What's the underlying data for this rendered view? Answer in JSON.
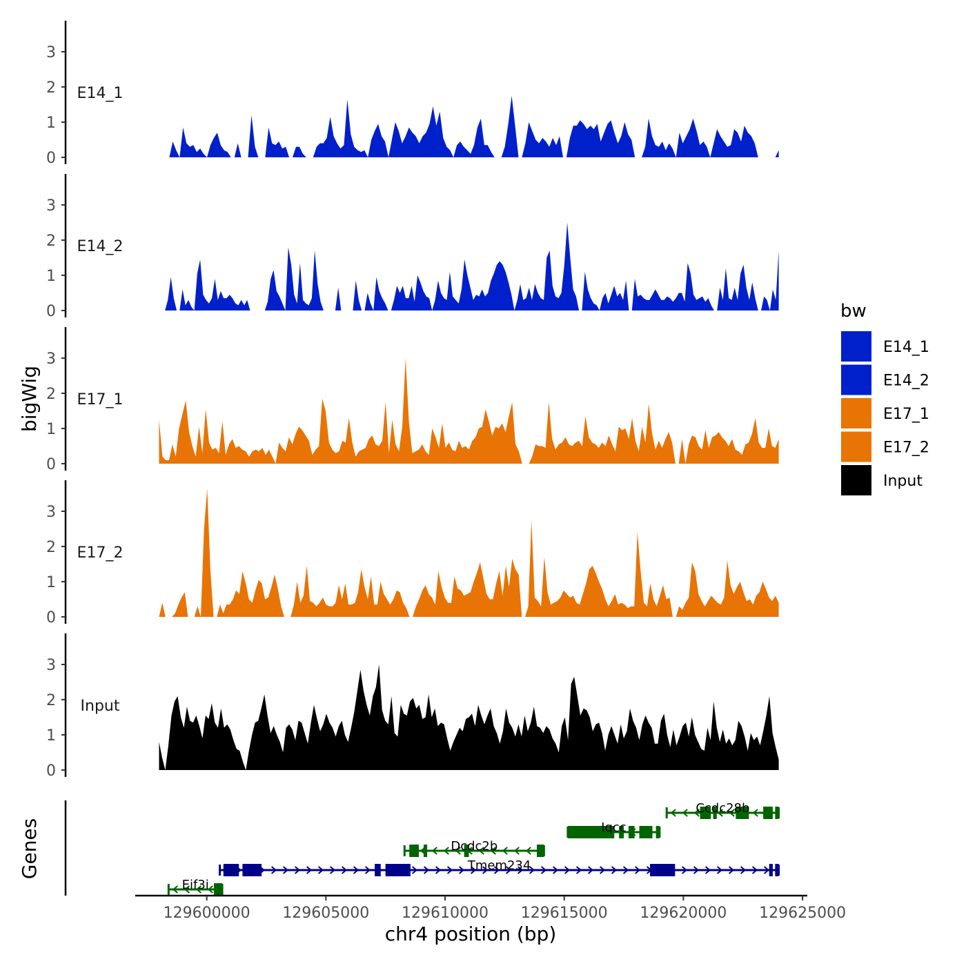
{
  "chart_data": {
    "type": "area",
    "title": "",
    "ylabel": "bigWig",
    "xlabel": "chr4 position (bp)",
    "genes_label": "Genes",
    "xlim": [
      129597000,
      129625200
    ],
    "ylim": [
      0,
      3.8
    ],
    "x_ticks": [
      129600000,
      129605000,
      129610000,
      129615000,
      129620000,
      129625000
    ],
    "x_tick_labels": [
      "129600000",
      "129605000",
      "129610000",
      "129615000",
      "129620000",
      "129625000"
    ],
    "y_ticks": [
      0,
      1,
      2,
      3
    ],
    "y_tick_labels": [
      "0",
      "1",
      "2",
      "3"
    ],
    "legend": {
      "title": "bw",
      "position": "right",
      "entries": [
        {
          "label": "E14_1",
          "color": "#0020CC"
        },
        {
          "label": "E14_2",
          "color": "#0020CC"
        },
        {
          "label": "E17_1",
          "color": "#E87405"
        },
        {
          "label": "E17_2",
          "color": "#E87405"
        },
        {
          "label": "Input",
          "color": "#000000"
        }
      ]
    },
    "tracks": [
      {
        "name": "E14_1",
        "color": "#0020CC",
        "start": 129598000,
        "end": 129624000,
        "values": [
          0,
          0,
          0,
          0,
          0.45,
          0.2,
          0,
          0.85,
          0.4,
          0.3,
          0.35,
          0.15,
          0.25,
          0.1,
          0,
          0.35,
          0.55,
          0.7,
          0.35,
          0.2,
          0.15,
          0,
          0,
          0.4,
          0,
          0,
          0,
          1.2,
          0.3,
          0,
          0,
          0,
          0.85,
          0.4,
          0.35,
          0.45,
          0.25,
          0.3,
          0,
          0,
          0.3,
          0.3,
          0.1,
          0,
          0,
          0,
          0.3,
          0.4,
          0.4,
          0.55,
          1.15,
          0.6,
          0.4,
          0.25,
          0.35,
          1.65,
          0.65,
          0.3,
          0.2,
          0.15,
          0.2,
          0,
          0.5,
          0.75,
          0.95,
          0.6,
          0.45,
          0,
          0.5,
          1.0,
          0.75,
          0.4,
          0.6,
          0.85,
          0.7,
          0.6,
          0.4,
          0.6,
          0.7,
          0.95,
          1.45,
          0.9,
          1.3,
          0.55,
          0.3,
          0.2,
          0,
          0.35,
          0.45,
          0.3,
          0.2,
          0.1,
          0.35,
          0.85,
          1.1,
          0.35,
          0.35,
          0.15,
          0,
          0,
          0,
          0.3,
          0.95,
          1.75,
          0.9,
          0,
          0,
          0.4,
          1.0,
          0.75,
          0.5,
          0.4,
          0.55,
          0.45,
          0.3,
          0.55,
          0.35,
          0.6,
          0,
          0,
          0.55,
          0.9,
          0.9,
          1.05,
          0.95,
          0.8,
          0.9,
          0.8,
          0.95,
          0.45,
          0.7,
          0.95,
          1.05,
          0.7,
          0.4,
          0.6,
          1.0,
          0.65,
          0.5,
          0,
          0,
          0,
          0.3,
          1.1,
          0.6,
          0.35,
          0.3,
          0.45,
          0.2,
          0.4,
          0.25,
          0,
          0.7,
          0.4,
          0.6,
          0.8,
          1.1,
          0.75,
          0.35,
          0.45,
          0.3,
          0,
          0.4,
          0.8,
          0.6,
          0.45,
          0.3,
          0.35,
          0.8,
          0.7,
          0.45,
          0.9,
          0.7,
          0.6,
          0.4,
          0,
          0,
          0,
          0,
          0,
          0,
          0.2
        ]
      },
      {
        "name": "E14_2",
        "color": "#0020CC",
        "start": 129598000,
        "end": 129624000,
        "values": [
          0,
          0,
          0,
          0.3,
          0.95,
          0.35,
          0,
          0,
          0.6,
          0.15,
          0.3,
          0.1,
          0,
          1.05,
          1.45,
          0.45,
          0.3,
          0.2,
          0.35,
          0.9,
          0.3,
          0.55,
          0.35,
          0.35,
          0.45,
          0.35,
          0.2,
          0.15,
          0.3,
          0.15,
          0.3,
          0,
          0,
          0,
          0,
          0,
          0,
          0.25,
          0.9,
          1.15,
          0.55,
          0.4,
          0.2,
          0,
          1.8,
          1.3,
          0.45,
          0.2,
          1.35,
          0.3,
          0.2,
          0.15,
          0.35,
          1.7,
          0.75,
          0.25,
          0,
          0,
          0,
          0,
          0,
          0.65,
          0,
          0,
          0,
          0,
          0,
          0.85,
          0.3,
          0,
          0,
          0.5,
          0.2,
          0,
          0.95,
          0.55,
          0.35,
          0.2,
          0,
          0,
          0.3,
          0.7,
          0.5,
          0.7,
          0.35,
          0.35,
          0.7,
          0.25,
          1.0,
          0.8,
          0.55,
          0.4,
          0.35,
          0,
          0.3,
          0.85,
          0.5,
          0.35,
          0.3,
          1.1,
          0.4,
          0.3,
          0.2,
          0.6,
          1.45,
          1.0,
          0.65,
          0.3,
          0.45,
          0.4,
          0.6,
          0.4,
          0.5,
          0.85,
          1.05,
          1.3,
          1.4,
          1.3,
          1.1,
          0.8,
          0.45,
          0,
          0.3,
          0.75,
          0.3,
          0.35,
          0.65,
          0.3,
          0.75,
          0.5,
          0.35,
          0.3,
          1.5,
          1.7,
          0.7,
          0.4,
          0.35,
          0.5,
          1.3,
          2.5,
          1.5,
          0.6,
          0.4,
          0,
          0,
          1.1,
          0.6,
          0.35,
          0.2,
          0.15,
          0,
          0.35,
          0.5,
          0.2,
          0.45,
          0.7,
          0.4,
          0.5,
          0.3,
          0.85,
          0,
          0,
          0.9,
          0.4,
          0.45,
          0.35,
          0.3,
          0.3,
          0.45,
          0.6,
          0.45,
          0.3,
          0.3,
          0.4,
          0.35,
          0.25,
          0.35,
          0.5,
          0.5,
          0.25,
          1.35,
          1.05,
          0.45,
          0.3,
          0.35,
          0.4,
          0.25,
          0.35,
          0.15,
          0,
          0,
          0.65,
          0.3,
          1.2,
          0.35,
          0.3,
          0.65,
          0.3,
          1.05,
          1.3,
          0.65,
          0.3,
          0.8,
          0.35,
          0,
          0,
          0.4,
          0.3,
          0,
          0.6,
          0.3,
          1.7
        ]
      },
      {
        "name": "E17_1",
        "color": "#E87405",
        "start": 129598000,
        "end": 129624000,
        "values": [
          1.25,
          0.2,
          0.1,
          0.1,
          0.55,
          0.2,
          1.0,
          1.4,
          1.8,
          0.9,
          0.5,
          0.2,
          1.05,
          0.3,
          1.55,
          0.6,
          0.4,
          0.45,
          0.3,
          1.2,
          0.25,
          0.55,
          0.7,
          0.45,
          0.5,
          0.4,
          0.35,
          0.2,
          0.35,
          0.4,
          0.35,
          0.45,
          0.25,
          0.4,
          0.2,
          0,
          0.6,
          0.45,
          0.35,
          0.75,
          0.55,
          0.85,
          1.05,
          0.95,
          0.8,
          0.65,
          0.25,
          0.4,
          0.5,
          1.85,
          1.5,
          0.6,
          0.4,
          0.3,
          0.35,
          0.65,
          0.6,
          1.3,
          0.6,
          0.2,
          0.35,
          0.4,
          0.45,
          0.7,
          0.8,
          0.55,
          0.5,
          0.65,
          1.75,
          0.3,
          1.25,
          0.55,
          0.35,
          1.05,
          3.0,
          1.2,
          0.3,
          0.35,
          0.4,
          0.55,
          0.35,
          0.25,
          1.0,
          0.75,
          0.45,
          1.15,
          0.45,
          0.6,
          0.4,
          0.35,
          0.65,
          0.45,
          0.5,
          0.4,
          0.65,
          0.75,
          1.0,
          1.05,
          1.55,
          1.2,
          0.8,
          1.05,
          1.0,
          1.15,
          0.9,
          1.35,
          1.75,
          0.55,
          0.35,
          0,
          0,
          0,
          0.2,
          0.55,
          0.5,
          0.5,
          0.45,
          1.75,
          0.7,
          0.4,
          0.55,
          0.6,
          0.75,
          0.55,
          0.5,
          0.6,
          0.65,
          0.5,
          1.35,
          0.75,
          0.6,
          0.55,
          0.45,
          0.6,
          0.5,
          0.8,
          0.55,
          0.35,
          1.05,
          0.95,
          1.0,
          0.7,
          1.3,
          0.65,
          0.35,
          1.05,
          0.6,
          1.7,
          0.85,
          0.4,
          0.65,
          0.45,
          0.7,
          0.9,
          0.6,
          0,
          0,
          0.7,
          0,
          0.55,
          0.8,
          0.75,
          0.5,
          0.4,
          0.95,
          0.45,
          0.75,
          0.8,
          0.9,
          0.75,
          0.65,
          0.5,
          0.7,
          0.4,
          0.35,
          0.25,
          0.55,
          0.6,
          0.85,
          1.3,
          0.6,
          0.45,
          0.45,
          1.0,
          0.5,
          0.45,
          0.7
        ]
      },
      {
        "name": "E17_2",
        "color": "#E87405",
        "start": 129598000,
        "end": 129624000,
        "values": [
          0,
          0.4,
          0,
          0,
          0,
          0.1,
          0.35,
          0.55,
          0.7,
          0,
          0,
          0,
          0.3,
          0,
          2.5,
          3.65,
          1.3,
          0,
          0,
          0.35,
          0.1,
          0.35,
          0.35,
          0.5,
          0.75,
          0.65,
          1.3,
          0.95,
          0.5,
          0.4,
          0.75,
          1.05,
          0.95,
          0.5,
          0.55,
          0.85,
          1.2,
          0.8,
          0.3,
          0,
          0,
          0,
          0.35,
          1.0,
          0.4,
          0.6,
          1.45,
          0.45,
          0.4,
          0.3,
          0.4,
          0.55,
          0.35,
          0.3,
          0.3,
          0.4,
          0.9,
          0.5,
          0.95,
          0.35,
          0.35,
          0.4,
          0.7,
          1.35,
          0.85,
          0.5,
          1.15,
          0.35,
          0.35,
          1.0,
          0.65,
          0.5,
          0.35,
          0.5,
          0.75,
          0.7,
          0.4,
          0.25,
          0,
          0,
          0.3,
          0.5,
          0.75,
          0.9,
          0.65,
          0.55,
          0.35,
          1.3,
          0.85,
          0.55,
          0.4,
          0.4,
          1.15,
          0.8,
          0.75,
          0.6,
          0.65,
          0.7,
          1.0,
          1.25,
          1.55,
          1.1,
          0.65,
          0.5,
          0.5,
          0.95,
          1.3,
          0.6,
          1.45,
          0.85,
          1.65,
          1.35,
          1.2,
          0,
          0,
          0.3,
          2.75,
          0.55,
          0.45,
          0.3,
          1.7,
          0.7,
          0.35,
          0.4,
          0.45,
          0.55,
          0.75,
          0.65,
          0.55,
          0.6,
          0.4,
          0.35,
          0.65,
          0.95,
          1.35,
          1.45,
          1.25,
          1.0,
          0.8,
          0.5,
          0.3,
          0.45,
          0.65,
          0.35,
          0.4,
          0.35,
          0.25,
          0.3,
          0.3,
          2.4,
          1.3,
          0.4,
          0.3,
          0.95,
          0.5,
          0.3,
          0.6,
          0.9,
          0.5,
          0.55,
          0,
          0,
          0.3,
          0.2,
          0.4,
          0.55,
          1.55,
          1.3,
          0.65,
          0.45,
          0.3,
          0.45,
          0.6,
          0.5,
          0.4,
          0.35,
          0.55,
          1.6,
          0.9,
          0.65,
          0.85,
          1.0,
          0.7,
          0.45,
          0.5,
          0.35,
          0.6,
          0.7,
          1.0,
          0.8,
          0.55,
          0.45,
          0.6,
          0.4
        ]
      },
      {
        "name": "Input",
        "color": "#000000",
        "start": 129598000,
        "end": 129624000,
        "values": [
          0.8,
          0.35,
          0,
          0.7,
          1.55,
          1.95,
          2.1,
          1.5,
          1.2,
          1.8,
          1.4,
          1.35,
          1.55,
          1.25,
          0.9,
          1.55,
          1.45,
          1.9,
          1.35,
          1.2,
          1.75,
          1.2,
          1.3,
          1.15,
          0.85,
          0.6,
          0.55,
          0.25,
          0,
          0.55,
          1.0,
          1.35,
          1.4,
          1.75,
          2.15,
          1.55,
          1.05,
          1.25,
          1.0,
          0.8,
          0.5,
          1.2,
          1.3,
          1.15,
          0.85,
          1.4,
          1.35,
          1.05,
          0.75,
          1.35,
          1.85,
          1.45,
          1.1,
          1.3,
          1.6,
          1.35,
          1.2,
          0.95,
          1.25,
          1.4,
          1.0,
          0.8,
          1.2,
          1.65,
          2.25,
          2.85,
          2.25,
          1.85,
          1.55,
          2.1,
          2.35,
          3.0,
          1.7,
          1.4,
          1.3,
          2.1,
          1.05,
          0.95,
          1.85,
          1.6,
          1.55,
          1.95,
          2.05,
          1.75,
          1.85,
          1.45,
          1.5,
          2.15,
          1.5,
          1.75,
          1.25,
          1.35,
          1.3,
          0.9,
          0.55,
          0.8,
          1.0,
          1.2,
          1.1,
          1.45,
          1.5,
          1.6,
          1.25,
          1.85,
          1.55,
          1.3,
          1.55,
          1.75,
          1.25,
          1.05,
          0.75,
          1.1,
          1.75,
          1.35,
          1.2,
          0.95,
          1.3,
          0.95,
          1.55,
          1.1,
          1.35,
          1.8,
          1.25,
          1.2,
          1.05,
          1.25,
          1.15,
          0.9,
          0.75,
          0.5,
          1.25,
          1.5,
          0.85,
          2.45,
          2.65,
          2.1,
          1.55,
          1.75,
          1.7,
          1.5,
          1.1,
          1.3,
          1.35,
          1.05,
          0.55,
          1.0,
          1.25,
          1.0,
          0.75,
          1.3,
          0.9,
          1.1,
          1.75,
          1.4,
          1.2,
          0.85,
          1.3,
          1.55,
          1.35,
          1.2,
          0.75,
          0.75,
          1.4,
          1.6,
          1.0,
          0.65,
          1.15,
          0.7,
          0.95,
          1.25,
          1.35,
          0.95,
          1.5,
          1.0,
          0.8,
          0.6,
          0.55,
          1.2,
          0.85,
          1.95,
          1.2,
          0.8,
          1.15,
          0.75,
          0.9,
          0.7,
          0.85,
          1.4,
          1.25,
          0.95,
          0.55,
          1.05,
          0.85,
          0.95,
          0.7,
          1.1,
          1.55,
          2.1,
          1.05,
          0.65,
          0.3
        ]
      }
    ],
    "genes": [
      {
        "name": "Eif3i",
        "strand": "-",
        "start": 129598400,
        "end": 129600650,
        "color": "#006400",
        "row": 1,
        "exons": [
          [
            129600300,
            129600650
          ]
        ]
      },
      {
        "name": "Tmem234",
        "strand": "+",
        "start": 129600550,
        "end": 129624000,
        "color": "#00008B",
        "row": 2,
        "exons": [
          [
            129600700,
            129601350
          ],
          [
            129601500,
            129602300
          ],
          [
            129607050,
            129607300
          ],
          [
            129607500,
            129608550
          ],
          [
            129618600,
            129619650
          ],
          [
            129623600,
            129623750
          ],
          [
            129623850,
            129624000
          ]
        ]
      },
      {
        "name": "Dcdc2b",
        "strand": "-",
        "start": 129608300,
        "end": 129614150,
        "color": "#006400",
        "row": 3,
        "exons": [
          [
            129608500,
            129608900
          ],
          [
            129609100,
            129609250
          ],
          [
            129610800,
            129611000
          ],
          [
            129613850,
            129614150
          ]
        ]
      },
      {
        "name": "Iqcc",
        "strand": "-",
        "start": 129615150,
        "end": 129619000,
        "color": "#006400",
        "row": 4,
        "exons": [
          [
            129615150,
            129617100
          ],
          [
            129617300,
            129617500
          ],
          [
            129617700,
            129617950
          ],
          [
            129618150,
            129618700
          ],
          [
            129618850,
            129619000
          ]
        ]
      },
      {
        "name": "Ccdc28b",
        "strand": "-",
        "start": 129619300,
        "end": 129624000,
        "color": "#006400",
        "row": 5,
        "exons": [
          [
            129620700,
            129621150
          ],
          [
            129621250,
            129621400
          ],
          [
            129622200,
            129622750
          ],
          [
            129623350,
            129623750
          ],
          [
            129623850,
            129624000
          ]
        ]
      }
    ]
  }
}
